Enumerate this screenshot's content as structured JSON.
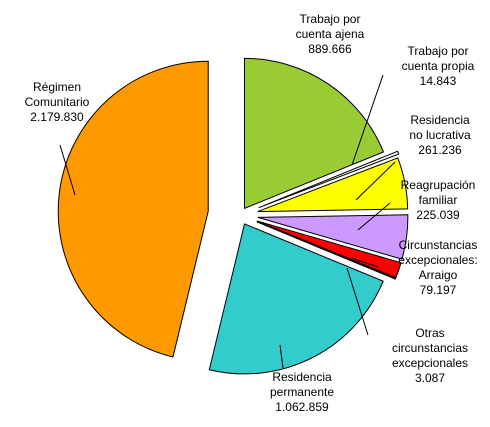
{
  "chart_data": {
    "type": "pie",
    "categories": [
      [
        "Trabajo por",
        "cuenta ajena"
      ],
      [
        "Trabajo por",
        "cuenta propia"
      ],
      [
        "Residencia",
        "no lucrativa"
      ],
      [
        "Reagrupación",
        "familiar"
      ],
      [
        "Circunstancias",
        "excepcionales:",
        "Arraigo"
      ],
      [
        "Otras",
        "circunstancias",
        "excepcionales"
      ],
      [
        "Residencia",
        "permanente"
      ],
      [
        "Régimen",
        "Comunitario"
      ]
    ],
    "values": [
      889666,
      14843,
      261236,
      225039,
      79197,
      3087,
      1062859,
      2179830
    ],
    "value_labels": [
      "889.666",
      "14.843",
      "261.236",
      "225.039",
      "79.197",
      "3.087",
      "1.062.859",
      "2.179.830"
    ],
    "colors": [
      "#99cc33",
      "#ffffff",
      "#ffff00",
      "#cc99ff",
      "#ff0000",
      "#ffffff",
      "#33cccc",
      "#ff9900"
    ]
  }
}
